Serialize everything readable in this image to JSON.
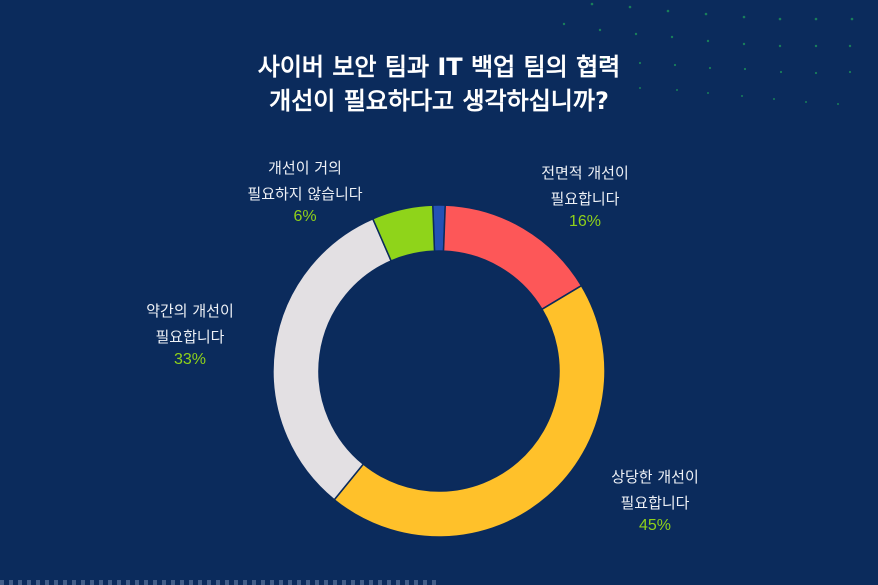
{
  "title": {
    "line1": "사이버 보안 팀과 IT 백업 팀의 협력",
    "line2": "개선이 필요하다고 생각하십니까?"
  },
  "colors": {
    "background": "#0b2b5c",
    "accent_percent": "#8fd11a",
    "separator": "#2451b5"
  },
  "chart_data": {
    "type": "pie",
    "subtype": "donut",
    "title": "사이버 보안 팀과 IT 백업 팀의 협력 개선이 필요하다고 생각하십니까?",
    "categories": [
      "전면적 개선이 필요합니다",
      "상당한 개선이 필요합니다",
      "약간의 개선이 필요합니다",
      "개선이 거의 필요하지 않습니다"
    ],
    "values": [
      16,
      45,
      33,
      6
    ],
    "unit": "%",
    "start_angle": "12 o'clock, clockwise",
    "colors": [
      "#fd5758",
      "#ffc12a",
      "#e3e0e3",
      "#8fd41a"
    ],
    "legend": "none (direct labels)"
  },
  "labels": [
    {
      "line1": "전면적 개선이",
      "line2": "필요합니다",
      "pct": "16%"
    },
    {
      "line1": "상당한 개선이",
      "line2": "필요합니다",
      "pct": "45%"
    },
    {
      "line1": "약간의 개선이",
      "line2": "필요합니다",
      "pct": "33%"
    },
    {
      "line1": "개선이 거의",
      "line2": "필요하지 않습니다",
      "pct": "6%"
    }
  ]
}
